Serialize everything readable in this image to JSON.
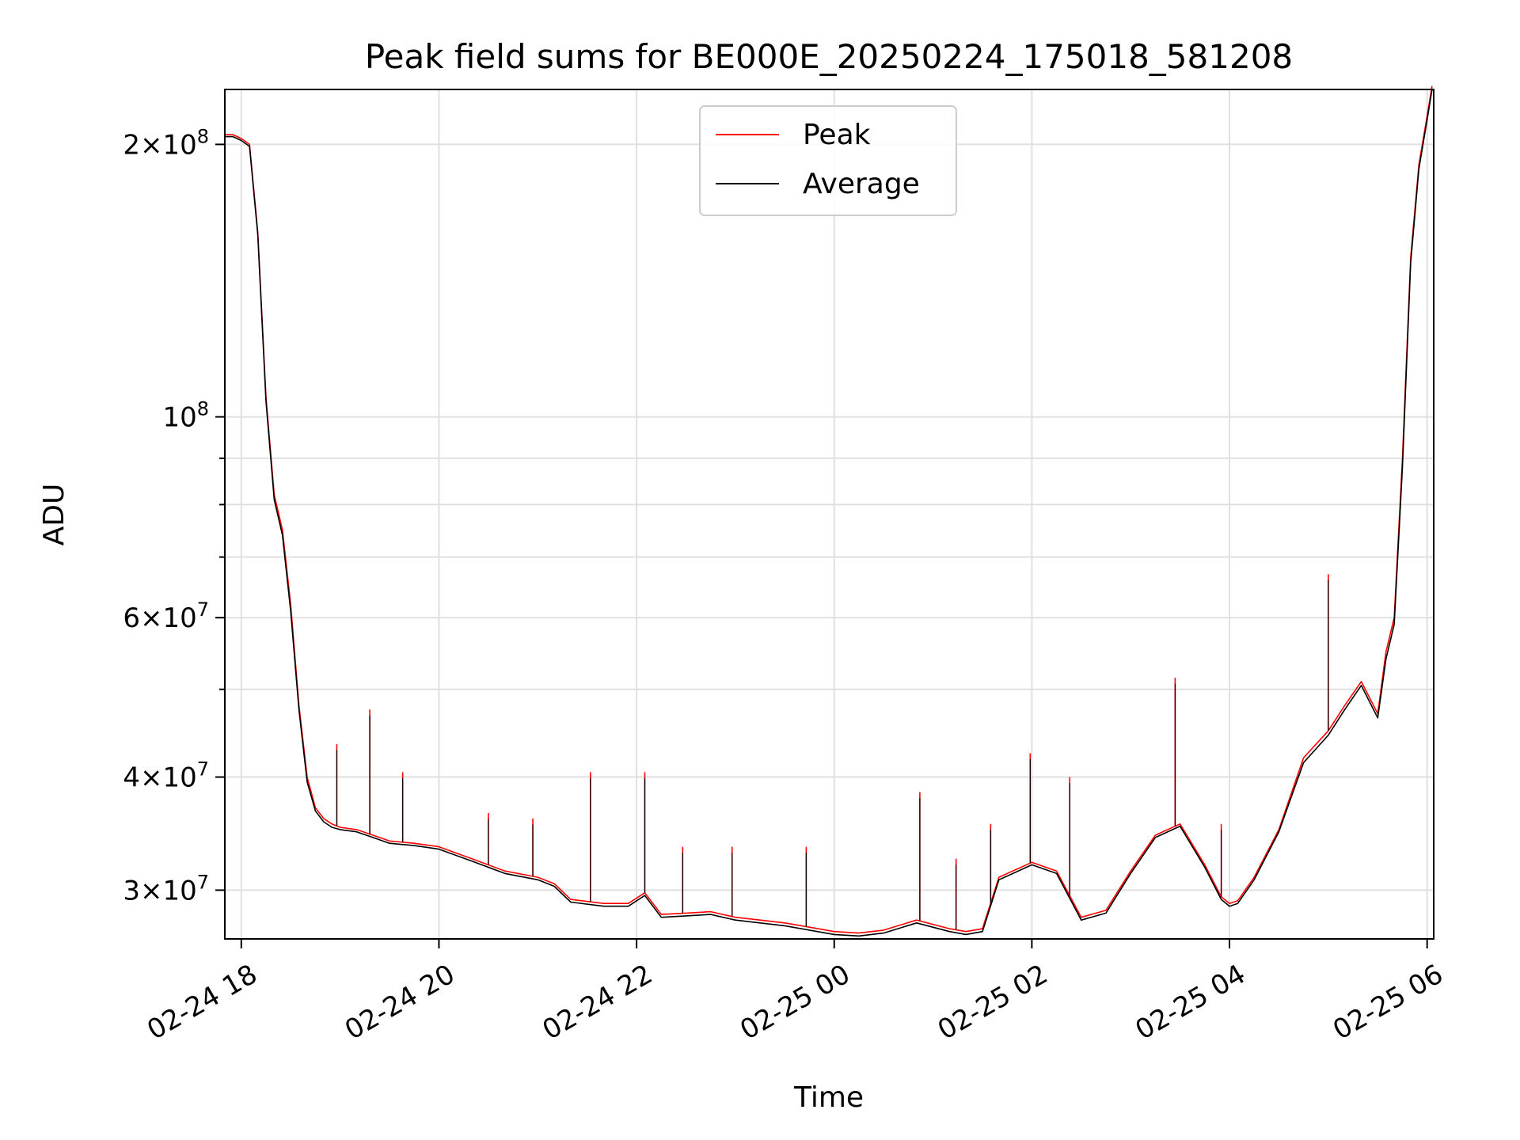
{
  "chart_data": {
    "type": "line",
    "title": "Peak field sums for BE000E_20250224_175018_581208",
    "xlabel": "Time",
    "ylabel": "ADU",
    "yscale": "log",
    "ylim": [
      26500000,
      230000000
    ],
    "xlim": [
      "2025-02-24 17:50",
      "2025-02-25 06:04"
    ],
    "grid": true,
    "legend_position": "top-center",
    "x_tick_labels": [
      "02-24 18",
      "02-24 20",
      "02-24 22",
      "02-25 00",
      "02-25 02",
      "02-25 04",
      "02-25 06"
    ],
    "x_tick_values": [
      "2025-02-24 18:00",
      "2025-02-24 20:00",
      "2025-02-24 22:00",
      "2025-02-25 00:00",
      "2025-02-25 02:00",
      "2025-02-25 04:00",
      "2025-02-25 06:00"
    ],
    "y_tick_labels": [
      {
        "value": 30000000,
        "mantissa": "3",
        "exp": "7"
      },
      {
        "value": 40000000,
        "mantissa": "4",
        "exp": "7"
      },
      {
        "value": 60000000,
        "mantissa": "6",
        "exp": "7"
      },
      {
        "value": 100000000,
        "mantissa": "",
        "exp": "8"
      },
      {
        "value": 200000000,
        "mantissa": "2",
        "exp": "8"
      }
    ],
    "y_minor_ticks": [
      50000000,
      70000000,
      80000000,
      90000000
    ],
    "series": [
      {
        "name": "Peak",
        "color": "#ff0000",
        "x": [
          "2025-02-24 17:50",
          "2025-02-24 17:55",
          "2025-02-24 18:00",
          "2025-02-24 18:05",
          "2025-02-24 18:10",
          "2025-02-24 18:15",
          "2025-02-24 18:20",
          "2025-02-24 18:25",
          "2025-02-24 18:30",
          "2025-02-24 18:35",
          "2025-02-24 18:40",
          "2025-02-24 18:45",
          "2025-02-24 18:50",
          "2025-02-24 18:55",
          "2025-02-24 19:00",
          "2025-02-24 19:10",
          "2025-02-24 19:20",
          "2025-02-24 19:30",
          "2025-02-24 19:45",
          "2025-02-24 20:00",
          "2025-02-24 20:20",
          "2025-02-24 20:40",
          "2025-02-24 21:00",
          "2025-02-24 21:10",
          "2025-02-24 21:20",
          "2025-02-24 21:40",
          "2025-02-24 21:55",
          "2025-02-24 22:05",
          "2025-02-24 22:15",
          "2025-02-24 22:30",
          "2025-02-24 22:45",
          "2025-02-24 23:00",
          "2025-02-24 23:15",
          "2025-02-24 23:30",
          "2025-02-24 23:45",
          "2025-02-25 00:00",
          "2025-02-25 00:15",
          "2025-02-25 00:30",
          "2025-02-25 00:50",
          "2025-02-25 01:10",
          "2025-02-25 01:20",
          "2025-02-25 01:30",
          "2025-02-25 01:40",
          "2025-02-25 02:00",
          "2025-02-25 02:15",
          "2025-02-25 02:30",
          "2025-02-25 02:45",
          "2025-02-25 03:00",
          "2025-02-25 03:15",
          "2025-02-25 03:30",
          "2025-02-25 03:45",
          "2025-02-25 03:55",
          "2025-02-25 04:00",
          "2025-02-25 04:05",
          "2025-02-25 04:15",
          "2025-02-25 04:30",
          "2025-02-25 04:45",
          "2025-02-25 05:00",
          "2025-02-25 05:10",
          "2025-02-25 05:20",
          "2025-02-25 05:30",
          "2025-02-25 05:35",
          "2025-02-25 05:40",
          "2025-02-25 05:45",
          "2025-02-25 05:50",
          "2025-02-25 05:55",
          "2025-02-25 06:00",
          "2025-02-25 06:03"
        ],
        "values": [
          205000000,
          205000000,
          203000000,
          200000000,
          160000000,
          105000000,
          82000000,
          75000000,
          62000000,
          48000000,
          40000000,
          37000000,
          36000000,
          35500000,
          35200000,
          35000000,
          34500000,
          34000000,
          33800000,
          33500000,
          32500000,
          31500000,
          31000000,
          30500000,
          29300000,
          29000000,
          29000000,
          29800000,
          28200000,
          28300000,
          28400000,
          28000000,
          27800000,
          27600000,
          27300000,
          27000000,
          26900000,
          27100000,
          27800000,
          27200000,
          27000000,
          27200000,
          31000000,
          32200000,
          31500000,
          28000000,
          28500000,
          31500000,
          34500000,
          35500000,
          32000000,
          29500000,
          29000000,
          29200000,
          31000000,
          35000000,
          42000000,
          45000000,
          48000000,
          51000000,
          47000000,
          55000000,
          60000000,
          90000000,
          150000000,
          190000000,
          215000000,
          232000000
        ],
        "spikes": [
          {
            "x": "2025-02-24 18:58",
            "value": 43500000
          },
          {
            "x": "2025-02-24 19:18",
            "value": 47500000
          },
          {
            "x": "2025-02-24 19:38",
            "value": 40500000
          },
          {
            "x": "2025-02-24 20:30",
            "value": 36500000
          },
          {
            "x": "2025-02-24 20:57",
            "value": 36000000
          },
          {
            "x": "2025-02-24 21:32",
            "value": 40500000
          },
          {
            "x": "2025-02-24 22:05",
            "value": 40500000
          },
          {
            "x": "2025-02-24 22:28",
            "value": 33500000
          },
          {
            "x": "2025-02-24 22:58",
            "value": 33500000
          },
          {
            "x": "2025-02-24 23:43",
            "value": 33500000
          },
          {
            "x": "2025-02-25 00:52",
            "value": 38500000
          },
          {
            "x": "2025-02-25 01:14",
            "value": 32500000
          },
          {
            "x": "2025-02-25 01:35",
            "value": 35500000
          },
          {
            "x": "2025-02-25 01:59",
            "value": 42500000
          },
          {
            "x": "2025-02-25 02:23",
            "value": 40000000
          },
          {
            "x": "2025-02-25 03:27",
            "value": 51500000
          },
          {
            "x": "2025-02-25 03:55",
            "value": 35500000
          },
          {
            "x": "2025-02-25 05:00",
            "value": 67000000
          }
        ]
      },
      {
        "name": "Average",
        "color": "#000000",
        "x": [
          "2025-02-24 17:50",
          "2025-02-24 17:55",
          "2025-02-24 18:00",
          "2025-02-24 18:05",
          "2025-02-24 18:10",
          "2025-02-24 18:15",
          "2025-02-24 18:20",
          "2025-02-24 18:25",
          "2025-02-24 18:30",
          "2025-02-24 18:35",
          "2025-02-24 18:40",
          "2025-02-24 18:45",
          "2025-02-24 18:50",
          "2025-02-24 18:55",
          "2025-02-24 19:00",
          "2025-02-24 19:10",
          "2025-02-24 19:20",
          "2025-02-24 19:30",
          "2025-02-24 19:45",
          "2025-02-24 20:00",
          "2025-02-24 20:20",
          "2025-02-24 20:40",
          "2025-02-24 21:00",
          "2025-02-24 21:10",
          "2025-02-24 21:20",
          "2025-02-24 21:40",
          "2025-02-24 21:55",
          "2025-02-24 22:05",
          "2025-02-24 22:15",
          "2025-02-24 22:30",
          "2025-02-24 22:45",
          "2025-02-24 23:00",
          "2025-02-24 23:15",
          "2025-02-24 23:30",
          "2025-02-24 23:45",
          "2025-02-25 00:00",
          "2025-02-25 00:15",
          "2025-02-25 00:30",
          "2025-02-25 00:50",
          "2025-02-25 01:10",
          "2025-02-25 01:20",
          "2025-02-25 01:30",
          "2025-02-25 01:40",
          "2025-02-25 02:00",
          "2025-02-25 02:15",
          "2025-02-25 02:30",
          "2025-02-25 02:45",
          "2025-02-25 03:00",
          "2025-02-25 03:15",
          "2025-02-25 03:30",
          "2025-02-25 03:45",
          "2025-02-25 03:55",
          "2025-02-25 04:00",
          "2025-02-25 04:05",
          "2025-02-25 04:15",
          "2025-02-25 04:30",
          "2025-02-25 04:45",
          "2025-02-25 05:00",
          "2025-02-25 05:10",
          "2025-02-25 05:20",
          "2025-02-25 05:30",
          "2025-02-25 05:35",
          "2025-02-25 05:40",
          "2025-02-25 05:45",
          "2025-02-25 05:50",
          "2025-02-25 05:55",
          "2025-02-25 06:00",
          "2025-02-25 06:03"
        ],
        "values": [
          204000000,
          204000000,
          202000000,
          199000000,
          159000000,
          104000000,
          81000000,
          74000000,
          61000000,
          47500000,
          39500000,
          36700000,
          35700000,
          35200000,
          35000000,
          34800000,
          34300000,
          33800000,
          33600000,
          33300000,
          32300000,
          31300000,
          30800000,
          30300000,
          29100000,
          28800000,
          28800000,
          29600000,
          28000000,
          28100000,
          28200000,
          27800000,
          27600000,
          27400000,
          27100000,
          26800000,
          26700000,
          26900000,
          27600000,
          27000000,
          26800000,
          27000000,
          30800000,
          32000000,
          31300000,
          27800000,
          28300000,
          31300000,
          34300000,
          35300000,
          31800000,
          29300000,
          28800000,
          29000000,
          30800000,
          34800000,
          41500000,
          44500000,
          47500000,
          50500000,
          46500000,
          54000000,
          59000000,
          88000000,
          148000000,
          188000000,
          213000000,
          230000000
        ]
      }
    ]
  }
}
